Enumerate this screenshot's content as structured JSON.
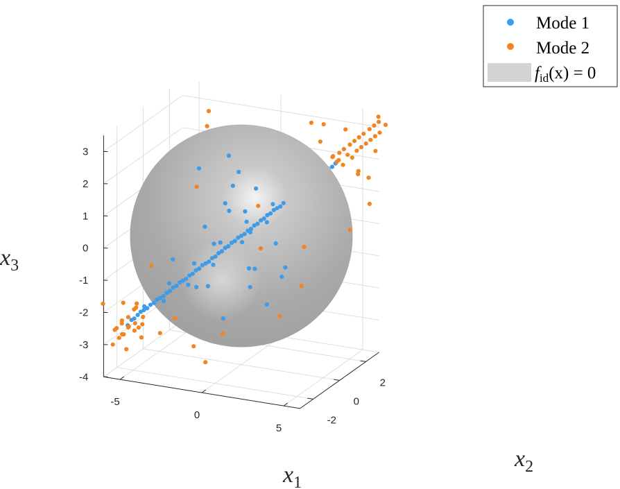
{
  "chart_data": {
    "type": "scatter",
    "projection": "3d",
    "axes": {
      "x1": {
        "label_main": "x",
        "label_sub": "1",
        "ticks": [
          -5,
          0,
          5
        ],
        "range": [
          -6,
          6
        ]
      },
      "x2": {
        "label_main": "x",
        "label_sub": "2",
        "ticks": [
          -2,
          0,
          2
        ],
        "range": [
          -3,
          3
        ]
      },
      "x3": {
        "label_main": "x",
        "label_sub": "3",
        "ticks": [
          3,
          2,
          1,
          0,
          -1,
          -2,
          -3,
          -4
        ],
        "range": [
          -4,
          3.5
        ]
      }
    },
    "grid": true,
    "legend": {
      "placement": "top-right",
      "entries": [
        {
          "key": "mode1",
          "label": "Mode 1",
          "color": "#3d9be9",
          "marker": "dot"
        },
        {
          "key": "mode2",
          "label": "Mode 2",
          "color": "#f28522",
          "marker": "dot"
        },
        {
          "key": "surface",
          "label_parts": [
            "f",
            "id",
            "(x) = 0"
          ],
          "color": "#d3d3d3",
          "marker": "patch"
        }
      ]
    },
    "surface": {
      "name": "f_id(x) = 0",
      "shape": "sphere",
      "center": [
        0,
        0,
        0
      ],
      "radius": 3,
      "color": "#a8a8a8"
    },
    "series": [
      {
        "name": "Mode 1",
        "color": "#3d9be9",
        "points": [
          [
            -5.25,
            -2.1,
            -2.6
          ],
          [
            -5.1,
            -2.0,
            -2.45
          ],
          [
            -4.95,
            -1.98,
            -2.4
          ],
          [
            -4.8,
            -1.9,
            -2.3
          ],
          [
            -4.65,
            -1.86,
            -2.2
          ],
          [
            -4.5,
            -1.8,
            -2.15
          ],
          [
            -4.35,
            -1.74,
            -2.1
          ],
          [
            -4.2,
            -1.68,
            -2.0
          ],
          [
            -4.05,
            -1.6,
            -1.95
          ],
          [
            -3.9,
            -1.56,
            -1.85
          ],
          [
            -3.75,
            -1.5,
            -1.8
          ],
          [
            -3.6,
            -1.44,
            -1.75
          ],
          [
            -3.45,
            -1.38,
            -1.65
          ],
          [
            -3.3,
            -1.32,
            -1.6
          ],
          [
            -3.15,
            -1.26,
            -1.5
          ],
          [
            -3.0,
            -1.2,
            -1.45
          ],
          [
            -2.85,
            -1.14,
            -1.35
          ],
          [
            -2.7,
            -1.08,
            -1.3
          ],
          [
            -2.55,
            -1.02,
            -1.25
          ],
          [
            -2.4,
            -0.96,
            -1.15
          ],
          [
            -2.25,
            -0.9,
            -1.1
          ],
          [
            -2.1,
            -0.84,
            -1.0
          ],
          [
            -1.95,
            -0.78,
            -0.95
          ],
          [
            -1.8,
            -0.72,
            -0.85
          ],
          [
            -1.65,
            -0.66,
            -0.8
          ],
          [
            -1.5,
            -0.6,
            -0.75
          ],
          [
            -1.35,
            -0.54,
            -0.65
          ],
          [
            -1.2,
            -0.48,
            -0.6
          ],
          [
            -1.05,
            -0.42,
            -0.5
          ],
          [
            -0.9,
            -0.36,
            -0.45
          ],
          [
            -0.75,
            -0.3,
            -0.35
          ],
          [
            -0.6,
            -0.24,
            -0.3
          ],
          [
            -0.45,
            -0.18,
            -0.2
          ],
          [
            -0.3,
            -0.12,
            -0.15
          ],
          [
            -0.15,
            -0.06,
            -0.05
          ],
          [
            0.0,
            0.0,
            0.0
          ],
          [
            0.15,
            0.06,
            0.05
          ],
          [
            0.3,
            0.12,
            0.15
          ],
          [
            0.45,
            0.18,
            0.2
          ],
          [
            0.6,
            0.24,
            0.3
          ],
          [
            0.75,
            0.3,
            0.35
          ],
          [
            0.9,
            0.36,
            0.45
          ],
          [
            1.05,
            0.42,
            0.5
          ],
          [
            1.2,
            0.48,
            0.6
          ],
          [
            1.35,
            0.54,
            0.65
          ],
          [
            1.5,
            0.6,
            0.75
          ],
          [
            1.65,
            0.66,
            0.8
          ],
          [
            1.8,
            0.72,
            0.85
          ],
          [
            1.95,
            0.78,
            0.95
          ],
          [
            2.1,
            0.84,
            1.0
          ],
          [
            2.25,
            0.9,
            1.1
          ],
          [
            2.4,
            0.96,
            1.15
          ],
          [
            2.55,
            1.02,
            1.25
          ],
          [
            2.7,
            1.08,
            1.3
          ],
          [
            2.85,
            1.14,
            1.35
          ],
          [
            3.0,
            1.2,
            1.45
          ],
          [
            3.15,
            1.26,
            1.5
          ],
          [
            3.3,
            1.32,
            1.6
          ],
          [
            3.45,
            1.38,
            1.65
          ],
          [
            3.6,
            1.44,
            1.75
          ],
          [
            3.75,
            1.5,
            1.8
          ],
          [
            3.9,
            1.56,
            1.85
          ],
          [
            4.05,
            1.62,
            1.95
          ],
          [
            4.2,
            1.68,
            2.0
          ],
          [
            4.35,
            1.74,
            2.1
          ],
          [
            -4.4,
            -1.9,
            -2.0
          ],
          [
            -3.7,
            -1.3,
            -1.95
          ],
          [
            -3.2,
            -1.5,
            -1.3
          ],
          [
            -2.6,
            -0.8,
            -1.5
          ],
          [
            -2.0,
            -1.1,
            -0.7
          ],
          [
            -1.4,
            -0.4,
            -0.9
          ],
          [
            -0.8,
            -0.6,
            -0.1
          ],
          [
            -0.2,
            0.3,
            -0.3
          ],
          [
            0.4,
            -0.1,
            0.5
          ],
          [
            1.0,
            0.7,
            0.3
          ],
          [
            1.6,
            0.4,
            1.0
          ],
          [
            2.2,
            1.1,
            0.9
          ],
          [
            2.8,
            0.9,
            1.6
          ],
          [
            3.4,
            1.6,
            1.5
          ],
          [
            3.9,
            1.3,
            2.1
          ],
          [
            -2.9,
            -1.6,
            -0.5
          ],
          [
            -2.2,
            0.2,
            -1.8
          ],
          [
            -1.1,
            -1.4,
            0.6
          ],
          [
            -0.5,
            1.2,
            -1.4
          ],
          [
            0.3,
            -1.6,
            1.5
          ],
          [
            0.9,
            1.5,
            -0.6
          ],
          [
            1.7,
            -1.0,
            1.9
          ],
          [
            2.4,
            1.8,
            0.2
          ],
          [
            -1.8,
            1.0,
            1.6
          ],
          [
            -0.6,
            -0.2,
            2.5
          ],
          [
            0.6,
            0.9,
            -2.4
          ],
          [
            1.8,
            -0.3,
            -1.9
          ],
          [
            -2.4,
            0.5,
            0.9
          ],
          [
            -1.3,
            1.9,
            0.1
          ],
          [
            0.1,
            -2.2,
            0.4
          ],
          [
            1.3,
            2.0,
            1.2
          ],
          [
            2.0,
            -1.8,
            0.8
          ],
          [
            -0.9,
            -2.3,
            -1.0
          ],
          [
            0.2,
            2.1,
            2.0
          ],
          [
            -2.1,
            -0.6,
            2.1
          ],
          [
            1.1,
            -0.7,
            -1.3
          ],
          [
            -1.6,
            1.6,
            -1.8
          ],
          [
            0.8,
            -1.2,
            2.4
          ],
          [
            2.6,
            0.1,
            -0.8
          ],
          [
            -2.7,
            1.3,
            -0.3
          ],
          [
            -0.3,
            -1.0,
            -2.3
          ],
          [
            1.5,
            1.2,
            -1.5
          ],
          [
            -1.0,
            0.6,
            1.3
          ],
          [
            0.5,
            0.4,
            -1.1
          ],
          [
            -0.1,
            -0.8,
            1.0
          ]
        ]
      },
      {
        "name": "Mode 2",
        "color": "#f28522",
        "points": [
          [
            -6.0,
            -2.3,
            -3.2
          ],
          [
            -5.8,
            -2.4,
            -2.7
          ],
          [
            -5.7,
            -2.2,
            -3.0
          ],
          [
            -5.6,
            -2.5,
            -2.6
          ],
          [
            -5.5,
            -2.1,
            -2.9
          ],
          [
            -5.45,
            -2.3,
            -2.5
          ],
          [
            -5.35,
            -2.4,
            -2.8
          ],
          [
            -5.3,
            -2.0,
            -2.7
          ],
          [
            -5.2,
            -2.6,
            -2.3
          ],
          [
            -5.1,
            -2.2,
            -2.6
          ],
          [
            -5.0,
            -1.9,
            -2.8
          ],
          [
            -4.9,
            -2.5,
            -2.2
          ],
          [
            -4.8,
            -2.1,
            -2.5
          ],
          [
            -4.7,
            -2.3,
            -2.0
          ],
          [
            -4.6,
            -1.8,
            -2.6
          ],
          [
            -4.5,
            -2.4,
            -1.9
          ],
          [
            -4.4,
            -2.0,
            -2.3
          ],
          [
            -4.3,
            -2.6,
            -1.7
          ],
          [
            -5.9,
            -1.4,
            -3.6
          ],
          [
            -6.2,
            -2.8,
            -1.8
          ],
          [
            -4.8,
            -3.0,
            -1.6
          ],
          [
            -4.1,
            -2.7,
            -2.4
          ],
          [
            -4.0,
            -1.2,
            -3.0
          ],
          [
            -5.3,
            -1.0,
            -3.3
          ],
          [
            4.2,
            1.7,
            2.3
          ],
          [
            4.3,
            1.9,
            2.1
          ],
          [
            4.4,
            1.5,
            2.4
          ],
          [
            4.5,
            1.8,
            2.2
          ],
          [
            4.6,
            2.0,
            2.0
          ],
          [
            4.7,
            1.6,
            2.5
          ],
          [
            4.8,
            2.1,
            2.3
          ],
          [
            4.9,
            1.7,
            2.6
          ],
          [
            5.0,
            2.2,
            2.2
          ],
          [
            5.1,
            1.9,
            2.7
          ],
          [
            5.2,
            2.3,
            2.4
          ],
          [
            5.3,
            2.0,
            2.8
          ],
          [
            5.4,
            2.4,
            2.5
          ],
          [
            5.5,
            2.1,
            2.9
          ],
          [
            5.6,
            2.5,
            2.6
          ],
          [
            5.7,
            2.2,
            3.0
          ],
          [
            5.8,
            2.6,
            2.7
          ],
          [
            5.9,
            2.4,
            3.1
          ],
          [
            6.0,
            2.7,
            2.8
          ],
          [
            6.1,
            2.5,
            3.2
          ],
          [
            6.2,
            2.8,
            2.9
          ],
          [
            6.3,
            2.6,
            3.3
          ],
          [
            5.4,
            1.2,
            3.4
          ],
          [
            6.4,
            3.0,
            3.1
          ],
          [
            4.9,
            2.8,
            1.6
          ],
          [
            5.7,
            3.1,
            2.2
          ],
          [
            3.5,
            1.9,
            3.2
          ],
          [
            4.1,
            0.9,
            3.0
          ],
          [
            6.6,
            2.2,
            3.6
          ],
          [
            5.2,
            3.2,
            1.3
          ],
          [
            5.5,
            2.9,
            0.6
          ],
          [
            6.0,
            1.4,
            2.0
          ],
          [
            -3.6,
            2.0,
            3.0
          ],
          [
            -3.3,
            1.5,
            2.7
          ],
          [
            -2.0,
            2.4,
            2.2
          ],
          [
            -1.4,
            2.8,
            1.4
          ],
          [
            2.8,
            -2.2,
            1.8
          ],
          [
            3.2,
            -2.5,
            0.6
          ],
          [
            4.8,
            -1.2,
            0.4
          ],
          [
            5.6,
            -2.4,
            -0.4
          ],
          [
            4.6,
            -2.8,
            -1.3
          ],
          [
            6.8,
            -0.2,
            0.8
          ],
          [
            3.8,
            2.4,
            1.2
          ],
          [
            2.1,
            2.7,
            2.9
          ],
          [
            -2.7,
            2.9,
            1.0
          ],
          [
            -5.8,
            1.4,
            -0.6
          ],
          [
            -5.1,
            -0.5,
            -1.2
          ],
          [
            -4.6,
            1.5,
            0.3
          ],
          [
            -1.8,
            -2.8,
            -1.9
          ],
          [
            -0.5,
            -3.0,
            -2.6
          ],
          [
            0.3,
            -3.1,
            -3.0
          ],
          [
            1.2,
            -2.9,
            -2.1
          ],
          [
            -2.3,
            2.2,
            -0.4
          ],
          [
            -1.6,
            -1.4,
            1.8
          ]
        ]
      }
    ]
  }
}
